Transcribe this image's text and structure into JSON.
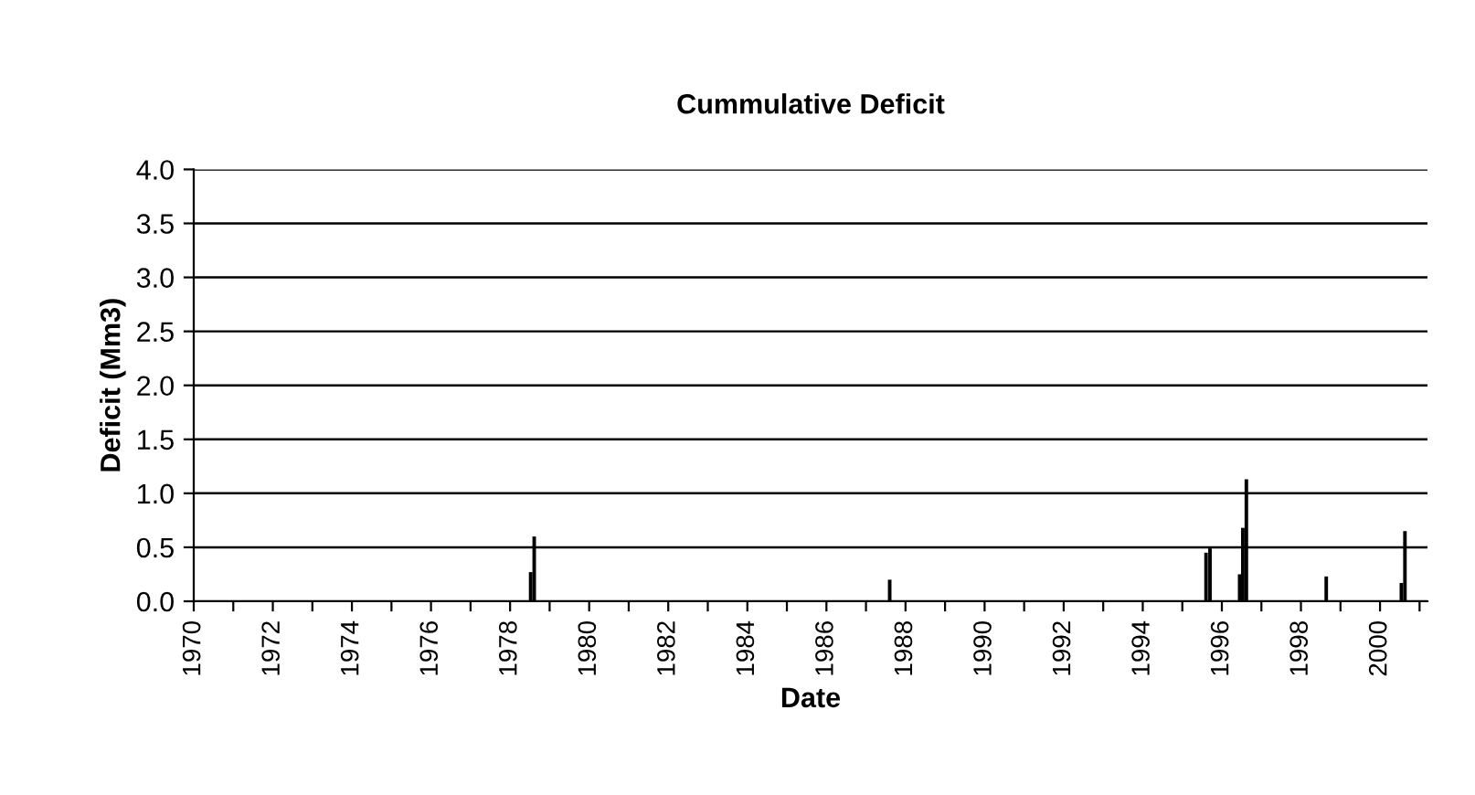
{
  "chart_data": {
    "type": "bar",
    "title": "Cummulative Deficit",
    "xlabel": "Date",
    "ylabel": "Deficit (Mm3)",
    "x": [
      1978.52,
      1978.61,
      1987.6,
      1995.6,
      1995.7,
      1996.45,
      1996.53,
      1996.62,
      1998.64,
      2000.54,
      2000.63
    ],
    "values": [
      0.27,
      0.6,
      0.2,
      0.45,
      0.49,
      0.25,
      0.68,
      1.13,
      0.23,
      0.17,
      0.65
    ],
    "color": "#000000",
    "xlim": [
      1970,
      2001.2
    ],
    "xticks": [
      1970,
      {
        "value": 1971,
        "label": null
      },
      1972,
      {
        "value": 1973,
        "label": null
      },
      1974,
      {
        "value": 1975,
        "label": null
      },
      1976,
      {
        "value": 1977,
        "label": null
      },
      1978,
      {
        "value": 1979,
        "label": null
      },
      1980,
      {
        "value": 1981,
        "label": null
      },
      1982,
      {
        "value": 1983,
        "label": null
      },
      1984,
      {
        "value": 1985,
        "label": null
      },
      1986,
      {
        "value": 1987,
        "label": null
      },
      1988,
      {
        "value": 1989,
        "label": null
      },
      1990,
      {
        "value": 1991,
        "label": null
      },
      1992,
      {
        "value": 1993,
        "label": null
      },
      1994,
      {
        "value": 1995,
        "label": null
      },
      1996,
      {
        "value": 1997,
        "label": null
      },
      1998,
      {
        "value": 1999,
        "label": null
      },
      2000,
      {
        "value": 2001,
        "label": null
      }
    ],
    "ylim": [
      0,
      4
    ],
    "yticks": [
      {
        "value": 0,
        "label": "0.0"
      },
      {
        "value": 0.5,
        "label": "0.5"
      },
      {
        "value": 1,
        "label": "1.0"
      },
      {
        "value": 1.5,
        "label": "1.5"
      },
      {
        "value": 2,
        "label": "2.0"
      },
      {
        "value": 2.5,
        "label": "2.5"
      },
      {
        "value": 3,
        "label": "3.0"
      },
      {
        "value": 3.5,
        "label": "3.5"
      },
      {
        "value": 4,
        "label": "4.0"
      }
    ],
    "grid": "y"
  }
}
